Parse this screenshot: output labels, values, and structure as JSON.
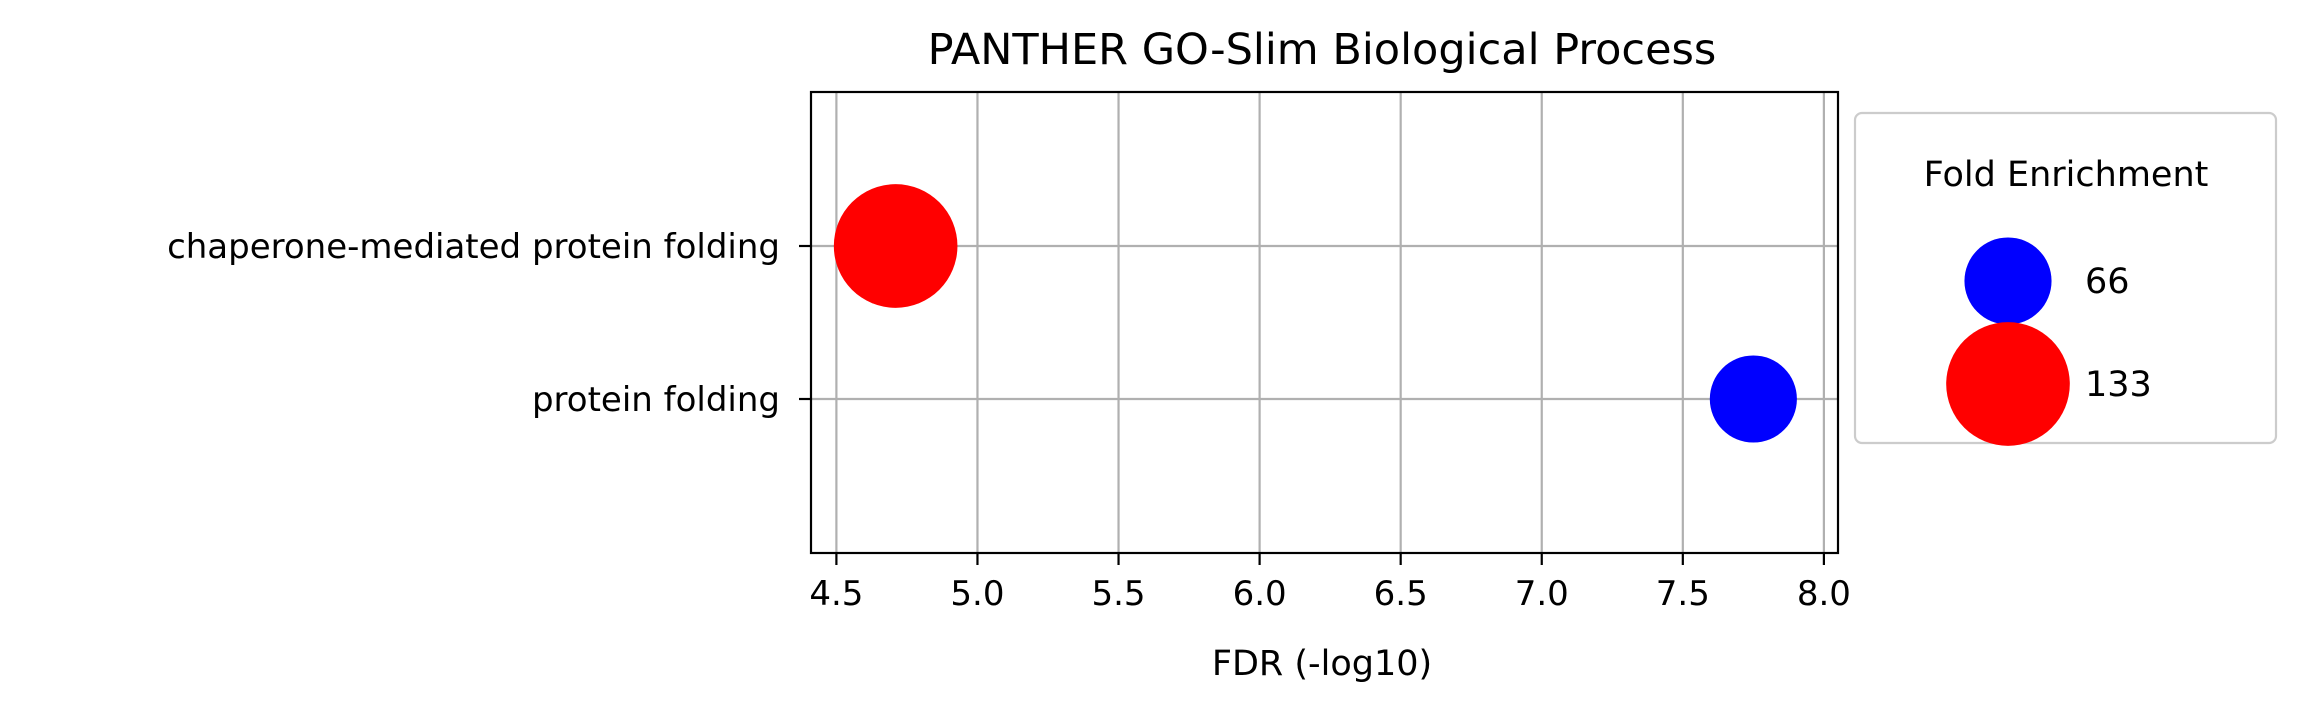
{
  "chart_data": {
    "type": "scatter",
    "title": "PANTHER GO-Slim Biological Process",
    "xlabel": "FDR (-log10)",
    "ylabel": "",
    "xlim": [
      4.41,
      8.05
    ],
    "xticks": [
      "4.5",
      "5.0",
      "5.5",
      "6.0",
      "6.5",
      "7.0",
      "7.5",
      "8.0"
    ],
    "categories": [
      "chaperone-mediated protein folding",
      "protein folding"
    ],
    "points": [
      {
        "category": "chaperone-mediated protein folding",
        "x": 4.71,
        "fold_enrichment": 133,
        "color": "#ff0000"
      },
      {
        "category": "protein folding",
        "x": 7.75,
        "fold_enrichment": 66,
        "color": "#0000ff"
      }
    ],
    "grid": true,
    "legend": {
      "title": "Fold Enrichment",
      "placement": "right",
      "entries": [
        {
          "label": "66",
          "color": "#0000ff"
        },
        {
          "label": "133",
          "color": "#ff0000"
        }
      ]
    }
  }
}
